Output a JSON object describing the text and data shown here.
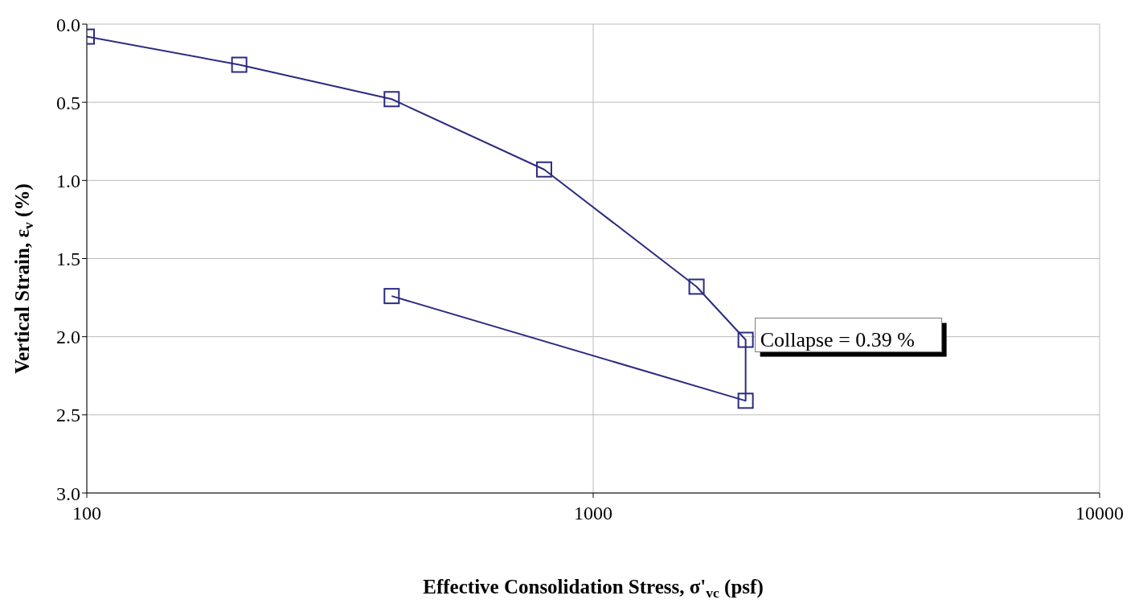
{
  "chart_data": {
    "type": "line",
    "xlabel": "Effective Consolidation Stress, σ'$_{vc}$ (psf)",
    "ylabel": "Vertical Strain, ε$_{v}$ (%)",
    "x": [
      100,
      200,
      400,
      800,
      1600,
      2000,
      2000,
      400
    ],
    "series": [
      {
        "color": "#2b2b80",
        "values": [
          0.08,
          0.26,
          0.48,
          0.93,
          1.68,
          2.02,
          2.41,
          1.74
        ]
      }
    ],
    "xlim": [
      100,
      10000
    ],
    "xticks": [
      100,
      1000,
      10000
    ],
    "ylim": [
      3,
      0
    ],
    "yticks": [
      {
        "value": 0,
        "label": "0.0"
      },
      {
        "value": 0.5,
        "label": "0.5"
      },
      {
        "value": 1,
        "label": "1.0"
      },
      {
        "value": 1.5,
        "label": "1.5"
      },
      {
        "value": 2,
        "label": "2.0"
      },
      {
        "value": 2.5,
        "label": "2.5"
      },
      {
        "value": 3,
        "label": "3.0"
      }
    ],
    "log": "x",
    "grid": true,
    "marker": "square",
    "line_style": "solid",
    "annotations": [
      {
        "text": "Collapse = 0.39 %",
        "x": 2000,
        "y": 2.02
      }
    ]
  }
}
